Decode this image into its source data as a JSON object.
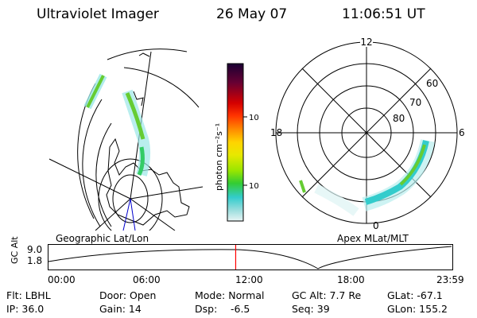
{
  "header": {
    "title": "Ultraviolet Imager",
    "date": "26 May 07",
    "time": "11:06:51 UT"
  },
  "colorbar": {
    "unit_label": "photon cm⁻²s⁻¹",
    "ticks": [
      "100",
      "10"
    ]
  },
  "geo_panel": {
    "label": "Geographic Lat/Lon"
  },
  "polar_panel": {
    "label": "Apex MLat/MLT",
    "hour_labels": {
      "top": "12",
      "left": "18",
      "right": "6",
      "bottom": "0"
    },
    "lat_labels": [
      "60",
      "70",
      "80"
    ]
  },
  "altitude_plot": {
    "ylabel": "GC Alt",
    "y_ticks": [
      "9.0",
      "1.8"
    ],
    "x_ticks": [
      "00:00",
      "06:00",
      "12:00",
      "18:00",
      "23:59"
    ],
    "current_time_fraction": 0.4635
  },
  "status": {
    "row1": {
      "filter": "Flt: LBHL",
      "door": "Door: Open",
      "mode": "Mode: Normal",
      "gc_alt": "GC Alt: 7.7 Re",
      "glat": "GLat: -67.1"
    },
    "row2": {
      "ip": "IP: 36.0",
      "gain": "Gain: 14",
      "dsp_label": "Dsp:",
      "dsp_value": "-6.5",
      "seq": "Seq: 39",
      "glon": "GLon: 155.2"
    }
  },
  "colors": {
    "bar_top": "#1a0033",
    "bar_red": "#d40000",
    "bar_orange": "#ff8c00",
    "bar_yellow": "#e8e800",
    "bar_green": "#66cc00",
    "bar_cyan": "#33cccc",
    "time_marker": "#ff0000"
  }
}
